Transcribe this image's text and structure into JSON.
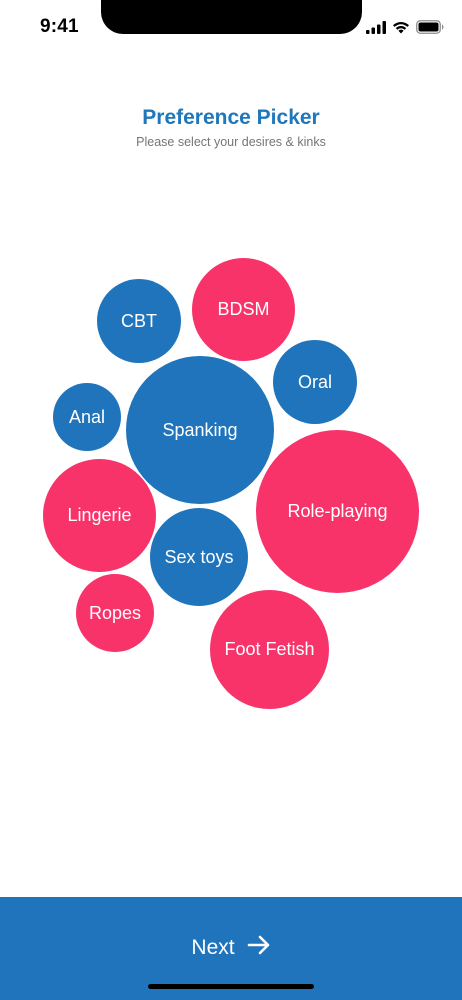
{
  "status_bar": {
    "time": "9:41",
    "icons": [
      "cellular-signal-icon",
      "wifi-icon",
      "battery-icon"
    ]
  },
  "header": {
    "title": "Preference Picker",
    "subtitle": "Please select your desires & kinks"
  },
  "bubbles": [
    {
      "id": "cbt",
      "label": "CBT",
      "color": "#1f74bb"
    },
    {
      "id": "bdsm",
      "label": "BDSM",
      "color": "#f7336a"
    },
    {
      "id": "oral",
      "label": "Oral",
      "color": "#1f74bb"
    },
    {
      "id": "anal",
      "label": "Anal",
      "color": "#1f74bb"
    },
    {
      "id": "spanking",
      "label": "Spanking",
      "color": "#1f74bb"
    },
    {
      "id": "lingerie",
      "label": "Lingerie",
      "color": "#f7336a"
    },
    {
      "id": "role-playing",
      "label": "Role-playing",
      "color": "#f7336a"
    },
    {
      "id": "sex-toys",
      "label": "Sex toys",
      "color": "#1f74bb"
    },
    {
      "id": "ropes",
      "label": "Ropes",
      "color": "#f7336a"
    },
    {
      "id": "foot-fetish",
      "label": "Foot Fetish",
      "color": "#f7336a"
    }
  ],
  "footer": {
    "next_label": "Next",
    "next_icon": "arrow-right-icon"
  },
  "colors": {
    "accent_blue": "#1f74bb",
    "accent_pink": "#f7336a",
    "title_blue": "#1f77bc"
  }
}
